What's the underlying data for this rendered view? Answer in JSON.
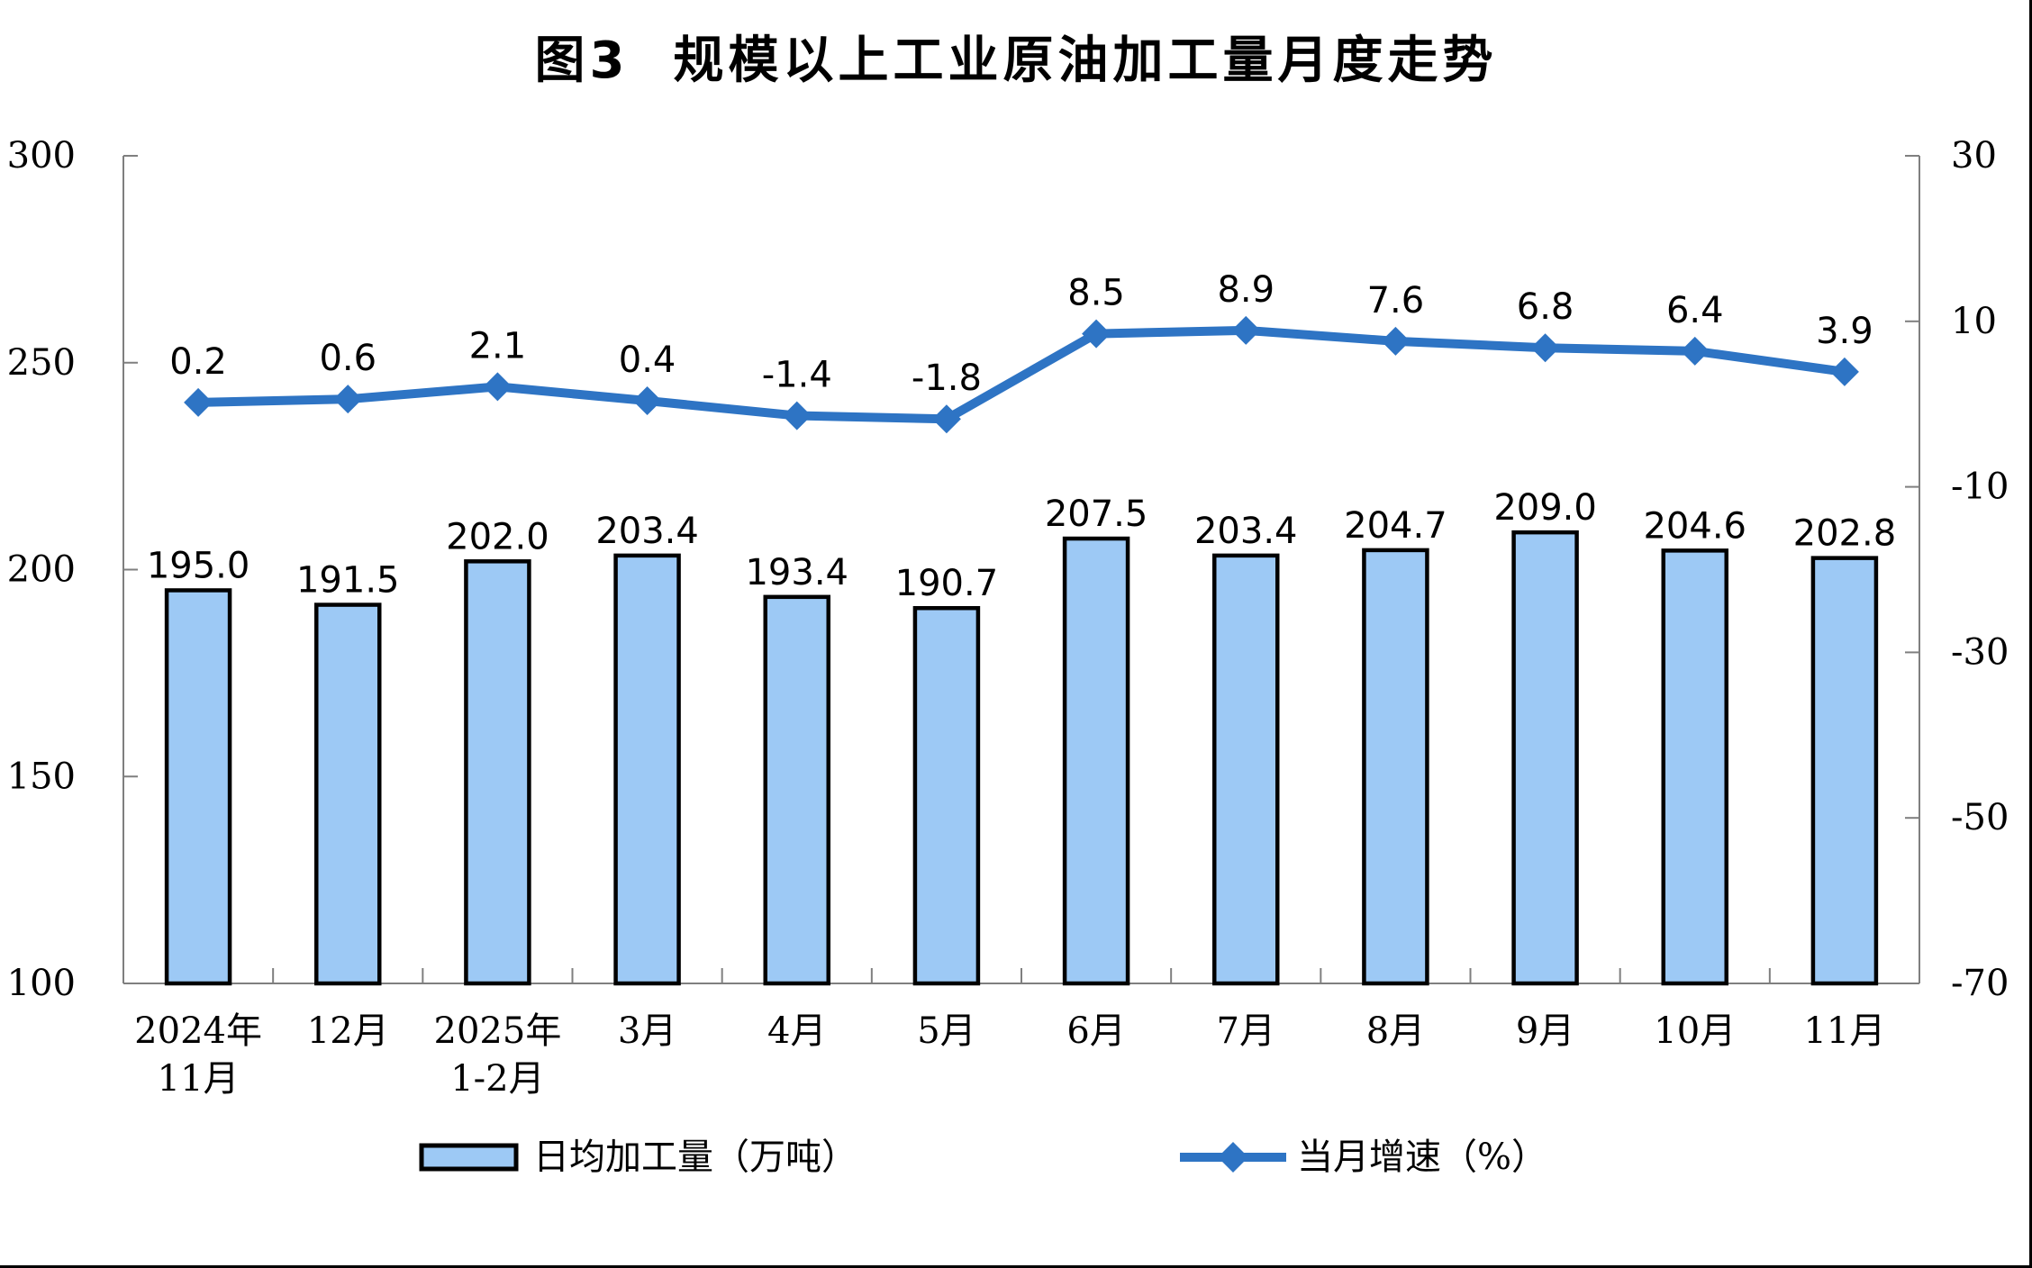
{
  "title": "图3  规模以上工业原油加工量月度走势",
  "colors": {
    "bar_fill": "#9DC9F5",
    "bar_border": "#000000",
    "line": "#2E74C4",
    "axis": "#7F7F7F",
    "label_text": "#000000"
  },
  "chart_data": {
    "type": "bar",
    "title": "图3  规模以上工业原油加工量月度走势",
    "categories": [
      [
        "2024年",
        "11月"
      ],
      [
        "12月"
      ],
      [
        "2025年",
        "1-2月"
      ],
      [
        "3月"
      ],
      [
        "4月"
      ],
      [
        "5月"
      ],
      [
        "6月"
      ],
      [
        "7月"
      ],
      [
        "8月"
      ],
      [
        "9月"
      ],
      [
        "10月"
      ],
      [
        "11月"
      ]
    ],
    "series": [
      {
        "name": "日均加工量（万吨）",
        "type": "bar",
        "axis": "left",
        "values": [
          195.0,
          191.5,
          202.0,
          203.4,
          193.4,
          190.7,
          207.5,
          203.4,
          204.7,
          209.0,
          204.6,
          202.8
        ]
      },
      {
        "name": "当月增速（%）",
        "type": "line",
        "axis": "right",
        "values": [
          0.2,
          0.6,
          2.1,
          0.4,
          -1.4,
          -1.8,
          8.5,
          8.9,
          7.6,
          6.8,
          6.4,
          3.9
        ]
      }
    ],
    "left_axis": {
      "min": 100,
      "max": 300,
      "ticks": [
        100,
        150,
        200,
        250,
        300
      ]
    },
    "right_axis": {
      "min": -70,
      "max": 30,
      "ticks": [
        -70,
        -50,
        -30,
        -10,
        10,
        30
      ]
    },
    "grid": false,
    "legend_position": "bottom",
    "legend": [
      {
        "label": "日均加工量（万吨）",
        "marker": "bar-swatch"
      },
      {
        "label": "当月增速（%）",
        "marker": "line-diamond"
      }
    ]
  }
}
